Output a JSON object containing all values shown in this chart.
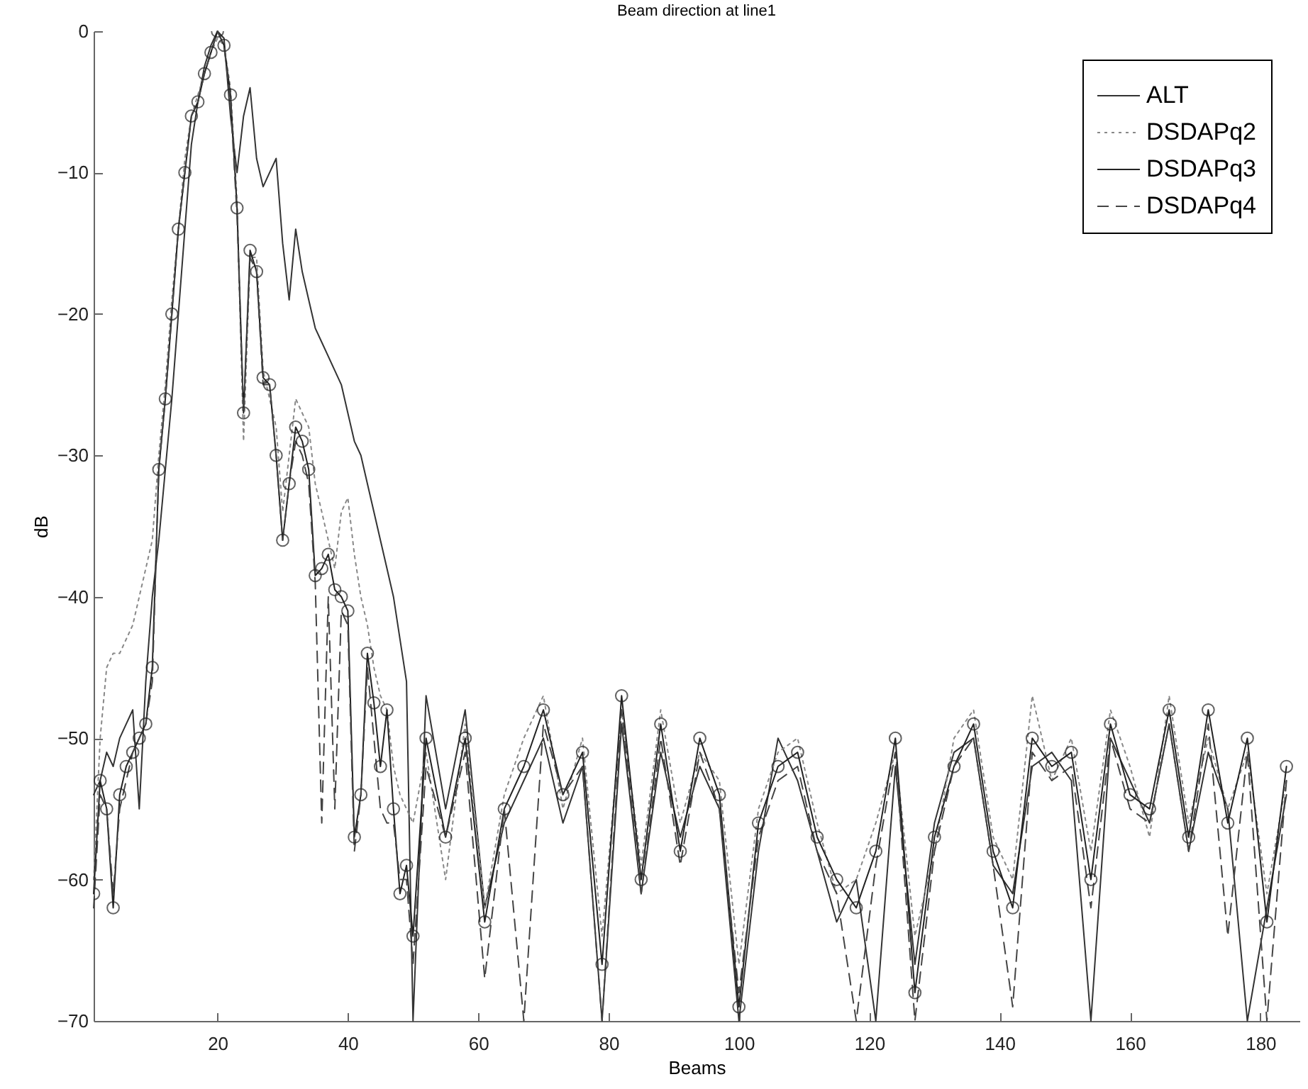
{
  "chart_data": {
    "type": "line",
    "title": "Beam direction at line1",
    "xlabel": "Beams",
    "ylabel": "dB",
    "x": [
      1,
      2,
      3,
      4,
      5,
      6,
      7,
      8,
      9,
      10,
      11,
      12,
      13,
      14,
      15,
      16,
      17,
      18,
      19,
      20,
      21,
      22,
      23,
      24,
      25,
      26,
      27,
      28,
      29,
      30,
      31,
      32,
      33,
      34,
      35,
      36,
      37,
      38,
      39,
      40,
      41,
      42,
      43,
      44,
      45,
      46,
      47,
      48,
      49,
      50,
      52,
      55,
      58,
      61,
      64,
      67,
      70,
      73,
      76,
      79,
      82,
      85,
      88,
      91,
      94,
      97,
      100,
      103,
      106,
      109,
      112,
      115,
      118,
      121,
      124,
      127,
      130,
      133,
      136,
      139,
      142,
      145,
      148,
      151,
      154,
      157,
      160,
      163,
      166,
      169,
      172,
      175,
      178,
      181,
      184
    ],
    "xlim": [
      1,
      186
    ],
    "xticks": [
      20,
      40,
      60,
      80,
      100,
      120,
      140,
      160,
      180
    ],
    "ylim": [
      -70,
      0
    ],
    "yticks": [
      -70,
      -60,
      -50,
      -40,
      -30,
      -20,
      -10,
      0
    ],
    "grid": false,
    "legend": "top right",
    "series": [
      {
        "name": "ALT",
        "color": "#333333",
        "line_style": "solid",
        "marker": "none",
        "values": [
          -54,
          -53,
          -51,
          -52,
          -50,
          -49,
          -48,
          -55,
          -46,
          -40,
          -36,
          -31,
          -26,
          -20,
          -14,
          -8,
          -5,
          -2.5,
          -1,
          0,
          -0.5,
          -6,
          -10,
          -6,
          -4,
          -9,
          -11,
          -10,
          -9,
          -15,
          -19,
          -14,
          -17,
          -19,
          -21,
          -22,
          -23,
          -24,
          -25,
          -27,
          -29,
          -30,
          -32,
          -34,
          -36,
          -38,
          -40,
          -43,
          -46,
          -70,
          -47,
          -55,
          -48,
          -62,
          -56,
          -53,
          -50,
          -56,
          -52,
          -70,
          -49,
          -61,
          -51,
          -57,
          -52,
          -55,
          -70,
          -58,
          -50,
          -53,
          -58,
          -63,
          -60,
          -70,
          -52,
          -66,
          -56,
          -51,
          -50,
          -59,
          -61,
          -52,
          -51,
          -53,
          -70,
          -50,
          -53,
          -56,
          -49,
          -58,
          -51,
          -55,
          -70,
          -62,
          -54
        ]
      },
      {
        "name": "DSDAPq2",
        "color": "#888888",
        "line_style": "dotted",
        "marker": "none",
        "values": [
          -60,
          -50,
          -45,
          -44,
          -44,
          -43,
          -42,
          -40,
          -38,
          -36,
          -30,
          -25,
          -19,
          -14,
          -9,
          -6,
          -4.5,
          -3,
          -1.5,
          -0.5,
          -1,
          -4,
          -12,
          -29,
          -16,
          -16,
          -24,
          -26,
          -28,
          -34,
          -30,
          -26,
          -27,
          -28,
          -32,
          -34,
          -36,
          -38,
          -34,
          -33,
          -37,
          -40,
          -42,
          -45,
          -47,
          -48,
          -52,
          -54,
          -55,
          -56,
          -51,
          -60,
          -49,
          -62,
          -54,
          -50,
          -47,
          -55,
          -50,
          -64,
          -48,
          -59,
          -48,
          -56,
          -51,
          -53,
          -66,
          -55,
          -51,
          -50,
          -56,
          -61,
          -60,
          -56,
          -51,
          -64,
          -58,
          -50,
          -48,
          -57,
          -60,
          -47,
          -53,
          -50,
          -58,
          -48,
          -52,
          -57,
          -47,
          -56,
          -50,
          -55,
          -51,
          -61,
          -53
        ]
      },
      {
        "name": "DSDAPq3",
        "color": "#222222",
        "line_style": "solid",
        "marker": "circle",
        "values": [
          -61,
          -53,
          -55,
          -62,
          -54,
          -52,
          -51,
          -50,
          -49,
          -45,
          -31,
          -26,
          -20,
          -14,
          -10,
          -6,
          -5,
          -3,
          -1.5,
          0,
          -1,
          -4.5,
          -12.5,
          -27,
          -15.5,
          -17,
          -24.5,
          -25,
          -30,
          -36,
          -32,
          -28,
          -29,
          -31,
          -38.5,
          -38,
          -37,
          -39.5,
          -40,
          -41,
          -57,
          -54,
          -44,
          -47.5,
          -52,
          -48,
          -55,
          -61,
          -59,
          -64,
          -50,
          -57,
          -50,
          -63,
          -55,
          -52,
          -48,
          -54,
          -51,
          -66,
          -47,
          -60,
          -49,
          -58,
          -50,
          -54,
          -69,
          -56,
          -52,
          -51,
          -57,
          -60,
          -62,
          -58,
          -50,
          -68,
          -57,
          -52,
          -49,
          -58,
          -62,
          -50,
          -52,
          -51,
          -60,
          -49,
          -54,
          -55,
          -48,
          -57,
          -48,
          -56,
          -50,
          -63,
          -52
        ]
      },
      {
        "name": "DSDAPq4",
        "color": "#444444",
        "line_style": "dashed",
        "marker": "none",
        "values": [
          -62,
          -54,
          -55,
          -61,
          -55,
          -53,
          -51,
          -50,
          -49,
          -46,
          -31,
          -26,
          -20,
          -14,
          -10,
          -6,
          -5,
          -3,
          -1.5,
          0,
          -1,
          -5,
          -13,
          -27,
          -16,
          -17,
          -25,
          -25,
          -30,
          -36,
          -32,
          -29,
          -30,
          -32,
          -39,
          -56,
          -40,
          -55,
          -41,
          -42,
          -58,
          -54,
          -45,
          -50,
          -55,
          -56,
          -56,
          -60,
          -60,
          -66,
          -52,
          -57,
          -51,
          -67,
          -55,
          -70,
          -49,
          -54,
          -52,
          -70,
          -48,
          -61,
          -50,
          -59,
          -51,
          -55,
          -68,
          -57,
          -53,
          -52,
          -58,
          -61,
          -70,
          -59,
          -51,
          -70,
          -58,
          -52,
          -50,
          -59,
          -69,
          -51,
          -53,
          -52,
          -62,
          -50,
          -55,
          -56,
          -49,
          -58,
          -49,
          -64,
          -51,
          -70,
          -53
        ]
      }
    ]
  }
}
